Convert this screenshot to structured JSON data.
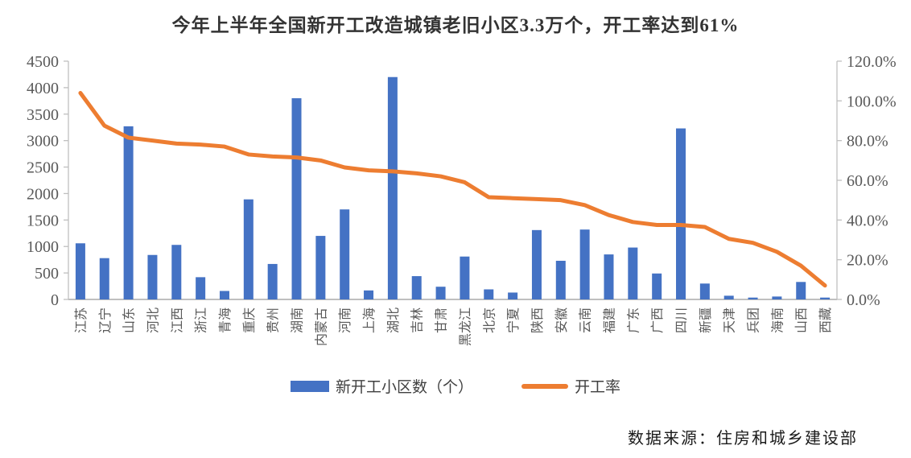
{
  "source": "数据来源：住房和城乡建设部",
  "chart_data": {
    "type": "bar",
    "subtype": "bar-line-combo",
    "title": "今年上半年全国新开工改造城镇老旧小区3.3万个，开工率达到61%",
    "xlabel": "",
    "ylabel_left": "",
    "ylabel_right": "",
    "grid": false,
    "legend_position": "bottom",
    "categories": [
      "江苏",
      "辽宁",
      "山东",
      "河北",
      "江西",
      "浙江",
      "青海",
      "重庆",
      "贵州",
      "湖南",
      "内蒙古",
      "河南",
      "上海",
      "湖北",
      "吉林",
      "甘肃",
      "黑龙江",
      "北京",
      "宁夏",
      "陕西",
      "安徽",
      "云南",
      "福建",
      "广东",
      "广西",
      "四川",
      "新疆",
      "天津",
      "兵团",
      "海南",
      "山西",
      "西藏"
    ],
    "series": [
      {
        "name": "新开工小区数（个）",
        "type": "bar",
        "axis": "left",
        "color": "#4472C4",
        "values": [
          1060,
          780,
          3270,
          840,
          1030,
          420,
          160,
          1890,
          670,
          3800,
          1200,
          1700,
          170,
          4200,
          440,
          240,
          810,
          190,
          130,
          1310,
          730,
          1320,
          850,
          980,
          490,
          3230,
          300,
          70,
          35,
          55,
          330,
          35
        ]
      },
      {
        "name": "开工率",
        "type": "line",
        "axis": "right",
        "color": "#ED7D31",
        "values": [
          104,
          87.5,
          81.5,
          80,
          78.5,
          78,
          77,
          73,
          72,
          71.5,
          70,
          66.5,
          65,
          64.5,
          63.5,
          62,
          59,
          51.5,
          51,
          50.5,
          50,
          47.5,
          42.5,
          39,
          37.5,
          37.5,
          36.5,
          30.5,
          28.5,
          24,
          17,
          7
        ]
      }
    ],
    "left_axis": {
      "min": 0,
      "max": 4500,
      "step": 500,
      "ticks": [
        "4500",
        "4000",
        "3500",
        "3000",
        "2500",
        "2000",
        "1500",
        "1000",
        "500",
        "0"
      ]
    },
    "right_axis": {
      "min": 0,
      "max": 120,
      "step": 20,
      "ticks": [
        "120.0%",
        "100.0%",
        "80.0%",
        "60.0%",
        "40.0%",
        "20.0%",
        "0.0%"
      ]
    },
    "axis_text_color": "#595959",
    "axis_line_color": "#BFBFBF"
  }
}
